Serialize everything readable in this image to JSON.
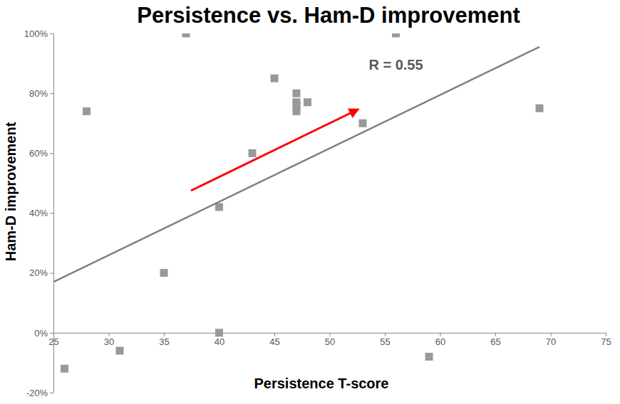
{
  "chart_data": {
    "type": "scatter",
    "title": "Persistence vs. Ham-D improvement",
    "x_label": "Persistence T-score",
    "y_label": "Ham-D improvement",
    "xlim": [
      25,
      75
    ],
    "xticks": [
      25,
      30,
      35,
      40,
      45,
      50,
      55,
      60,
      65,
      70,
      75
    ],
    "ylim": [
      -20,
      100
    ],
    "yticks": [
      {
        "value": -20,
        "label": "-20%"
      },
      {
        "value": 0,
        "label": "0%"
      },
      {
        "value": 20,
        "label": "20%"
      },
      {
        "value": 40,
        "label": "40%"
      },
      {
        "value": 60,
        "label": "60%"
      },
      {
        "value": 80,
        "label": "80%"
      },
      {
        "value": 100,
        "label": "100%"
      }
    ],
    "grid": false,
    "series": [
      {
        "type": "scatter",
        "color": "#999999",
        "marker": "square",
        "x": [
          26,
          28,
          31,
          35,
          37,
          40,
          40,
          43,
          45,
          47,
          47,
          47,
          47,
          48,
          53,
          56,
          59,
          69
        ],
        "values": [
          -12,
          74,
          -6,
          20,
          100,
          42,
          0,
          60,
          85,
          80,
          77,
          76,
          74,
          77,
          70,
          100,
          -8,
          75
        ]
      },
      {
        "type": "line",
        "color": "#808080",
        "line_style": "solid",
        "x": [
          25,
          69
        ],
        "values": [
          17,
          95.5
        ]
      }
    ],
    "annotations": [
      {
        "text": "R = 0.55",
        "x": 56,
        "y": 88
      }
    ]
  }
}
